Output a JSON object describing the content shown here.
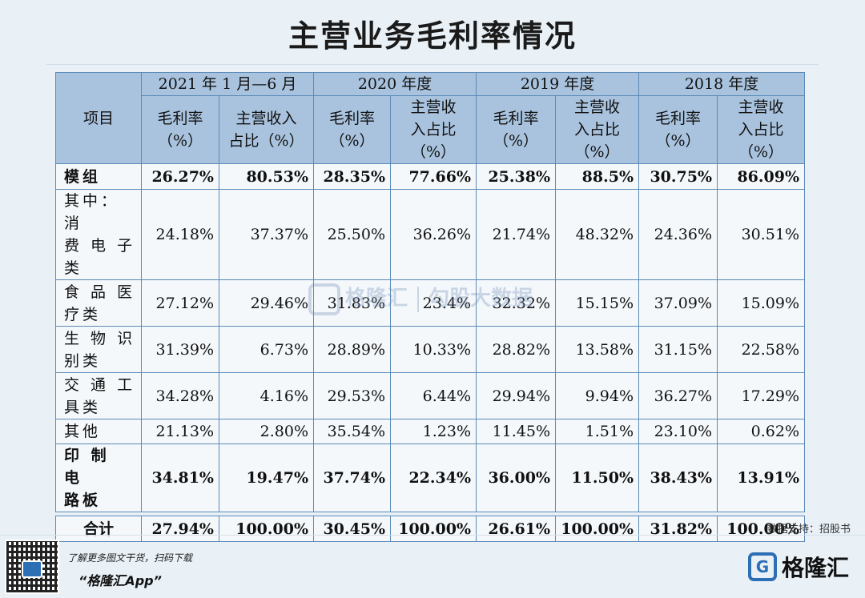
{
  "title": "主营业务毛利率情况",
  "header": {
    "item": "项目",
    "periods": [
      "2021 年 1 月—6 月",
      "2020 年度",
      "2019 年度",
      "2018 年度"
    ],
    "sub_cols": [
      [
        "毛利率",
        "（%）"
      ],
      [
        "主营收入",
        "占比（%）"
      ],
      [
        "毛利率",
        "（%）"
      ],
      [
        "主营收",
        "入占比",
        "（%）"
      ],
      [
        "毛利率",
        "（%）"
      ],
      [
        "主营收",
        "入占比",
        "（%）"
      ],
      [
        "毛利率",
        "（%）"
      ],
      [
        "主营收",
        "入占比",
        "（%）"
      ]
    ]
  },
  "rows": [
    {
      "label": [
        "模组"
      ],
      "bold": true,
      "values": [
        "26.27%",
        "80.53%",
        "28.35%",
        "77.66%",
        "25.38%",
        "88.5%",
        "30.75%",
        "86.09%"
      ]
    },
    {
      "label": [
        "其中：消",
        "费 电 子",
        "类"
      ],
      "bold": false,
      "values": [
        "24.18%",
        "37.37%",
        "25.50%",
        "36.26%",
        "21.74%",
        "48.32%",
        "24.36%",
        "30.51%"
      ]
    },
    {
      "label": [
        "食 品 医",
        "疗类"
      ],
      "bold": false,
      "values": [
        "27.12%",
        "29.46%",
        "31.83%",
        "23.4%",
        "32.32%",
        "15.15%",
        "37.09%",
        "15.09%"
      ]
    },
    {
      "label": [
        "生 物 识",
        "别类"
      ],
      "bold": false,
      "values": [
        "31.39%",
        "6.73%",
        "28.89%",
        "10.33%",
        "28.82%",
        "13.58%",
        "31.15%",
        "22.58%"
      ]
    },
    {
      "label": [
        "交 通 工",
        "具类"
      ],
      "bold": false,
      "values": [
        "34.28%",
        "4.16%",
        "29.53%",
        "6.44%",
        "29.94%",
        "9.94%",
        "36.27%",
        "17.29%"
      ]
    },
    {
      "label": [
        "其他"
      ],
      "bold": false,
      "values": [
        "21.13%",
        "2.80%",
        "35.54%",
        "1.23%",
        "11.45%",
        "1.51%",
        "23.10%",
        "0.62%"
      ]
    },
    {
      "label": [
        "印 制 电",
        "路板"
      ],
      "bold": true,
      "values": [
        "34.81%",
        "19.47%",
        "37.74%",
        "22.34%",
        "36.00%",
        "11.50%",
        "38.43%",
        "13.91%"
      ]
    }
  ],
  "total": {
    "label": "合计",
    "values": [
      "27.94%",
      "100.00%",
      "30.45%",
      "100.00%",
      "26.61%",
      "100.00%",
      "31.82%",
      "100.00%"
    ]
  },
  "watermark": {
    "brand": "格隆汇",
    "partner": "勾股大数据"
  },
  "source": "数据支持：招股书",
  "footer": {
    "promo_line": "了解更多图文干货，扫码下载",
    "app_name": "“格隆汇App”",
    "brand": "格隆汇",
    "brand_letter": "G"
  }
}
